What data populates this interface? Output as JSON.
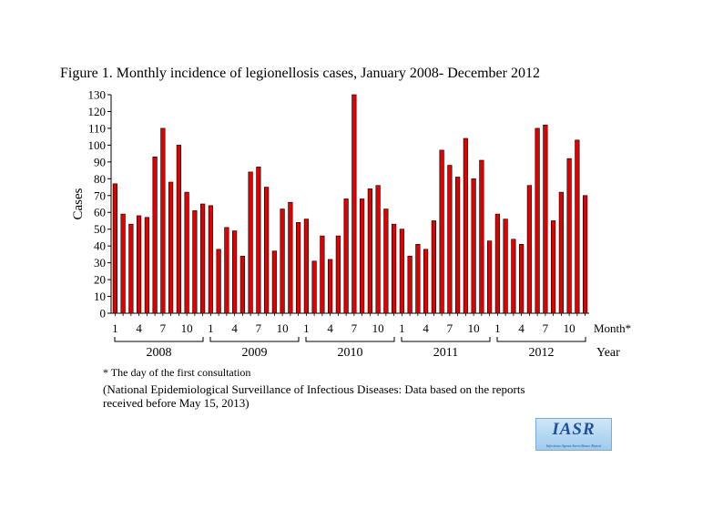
{
  "chart_data": {
    "type": "bar",
    "title": "Figure 1. Monthly incidence of legionellosis cases, January 2008- December 2012",
    "ylabel": "Cases",
    "xlabel_month": "Month*",
    "xlabel_year": "Year",
    "ylim": [
      0,
      130
    ],
    "ytick_step": 10,
    "yticks": [
      "0",
      "10",
      "20",
      "30",
      "40",
      "50",
      "60",
      "70",
      "80",
      "90",
      "100",
      "110",
      "120",
      "130"
    ],
    "month_ticks": [
      "1",
      "4",
      "7",
      "10"
    ],
    "years": [
      "2008",
      "2009",
      "2010",
      "2011",
      "2012"
    ],
    "values": [
      77,
      59,
      53,
      58,
      57,
      93,
      110,
      78,
      100,
      72,
      61,
      65,
      64,
      38,
      51,
      49,
      34,
      84,
      87,
      75,
      37,
      62,
      66,
      54,
      56,
      31,
      46,
      32,
      46,
      68,
      130,
      68,
      74,
      76,
      62,
      53,
      50,
      34,
      41,
      38,
      55,
      97,
      88,
      81,
      104,
      80,
      91,
      43,
      59,
      56,
      44,
      41,
      76,
      110,
      112,
      55,
      72,
      92,
      103,
      70
    ],
    "bar_color": "#e00000",
    "grid": false
  },
  "notes": {
    "footnote": "* The day of the first consultation",
    "source_line1": "(National Epidemiological Surveillance of Infectious Diseases: Data based on the reports",
    "source_line2": " received before May 15, 2013)"
  },
  "logo": {
    "text": "IASR",
    "subtext": "Infectious Agents Surveillance Report"
  }
}
